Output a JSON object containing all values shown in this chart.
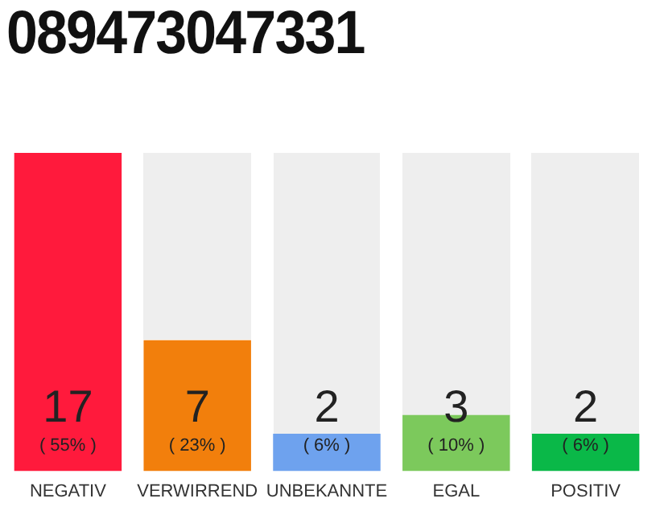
{
  "chart_data": {
    "type": "bar",
    "title": "089473047331",
    "categories": [
      "NEGATIV",
      "VERWIRREND",
      "UNBEKANNTE",
      "EGAL",
      "POSITIV"
    ],
    "values": [
      17,
      7,
      2,
      3,
      2
    ],
    "colors": [
      "#ff1a3c",
      "#f27f0c",
      "#6ea2ee",
      "#7cc95c",
      "#0ab848"
    ],
    "value_labels": [
      "17\n( 55% )",
      "7\n( 23% )",
      "2\n( 6% )",
      "3\n( 10% )",
      "2\n( 6% )"
    ],
    "grid": false,
    "legend": false
  }
}
